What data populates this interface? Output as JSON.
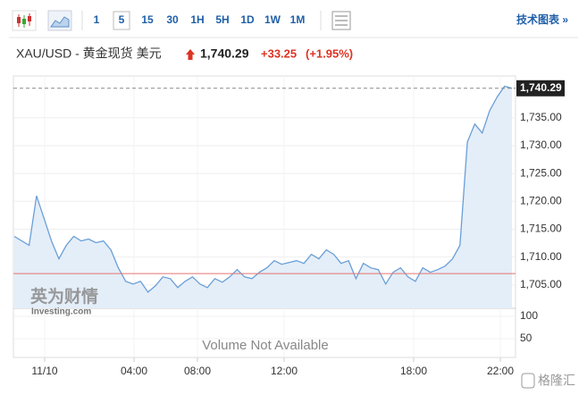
{
  "toolbar": {
    "intervals": [
      "1",
      "5",
      "15",
      "30",
      "1H",
      "5H",
      "1D",
      "1W",
      "1M"
    ],
    "tech_chart": "技术图表 »"
  },
  "header": {
    "symbol": "XAU/USD - 黄金现货 美元",
    "price": "1,740.29",
    "change": "+33.25",
    "change_pct": "(+1.95%)"
  },
  "chart_data": {
    "type": "area",
    "color": "#6a9fd8",
    "fill": "#e4eef8",
    "values": [
      1713.71,
      1712.9,
      1712.1,
      1720.97,
      1716.94,
      1712.9,
      1709.68,
      1712.1,
      1713.71,
      1712.9,
      1713.23,
      1712.58,
      1712.9,
      1711.29,
      1708.06,
      1705.65,
      1705.16,
      1705.65,
      1703.71,
      1704.84,
      1706.45,
      1706.13,
      1704.52,
      1705.65,
      1706.45,
      1705.16,
      1704.52,
      1706.13,
      1705.48,
      1706.45,
      1707.74,
      1706.45,
      1706.13,
      1707.26,
      1708.06,
      1709.35,
      1708.71,
      1709.03,
      1709.35,
      1708.87,
      1710.48,
      1709.68,
      1711.29,
      1710.48,
      1708.87,
      1709.35,
      1706.13,
      1708.87,
      1708.06,
      1707.74,
      1705.16,
      1707.26,
      1708.06,
      1706.45,
      1705.65,
      1708.06,
      1707.26,
      1707.74,
      1708.39,
      1709.68,
      1712.1,
      1730.65,
      1733.87,
      1732.26,
      1736.29,
      1738.71,
      1740.65,
      1740.29
    ],
    "last_price": 1740.29,
    "reference_line": 1707.04,
    "reference_color": "#e57373",
    "ylim": [
      1700.8,
      1742.5
    ],
    "yticks": [
      {
        "value": 1705,
        "label": "1,705.00"
      },
      {
        "value": 1710,
        "label": "1,710.00"
      },
      {
        "value": 1715,
        "label": "1,715.00"
      },
      {
        "value": 1720,
        "label": "1,720.00"
      },
      {
        "value": 1725,
        "label": "1,725.00"
      },
      {
        "value": 1730,
        "label": "1,730.00"
      },
      {
        "value": 1735,
        "label": "1,735.00"
      }
    ],
    "volume_ylim": [
      0,
      118
    ],
    "volume_yticks": [
      50,
      100
    ],
    "volume_note": "Volume Not Available",
    "xticks": [
      "11/10",
      "04:00",
      "08:00",
      "12:00",
      "18:00",
      "22:00"
    ],
    "watermark": "英为财情",
    "watermark_sub": "Investing.com",
    "source_logo": "格隆汇",
    "grid": true
  }
}
